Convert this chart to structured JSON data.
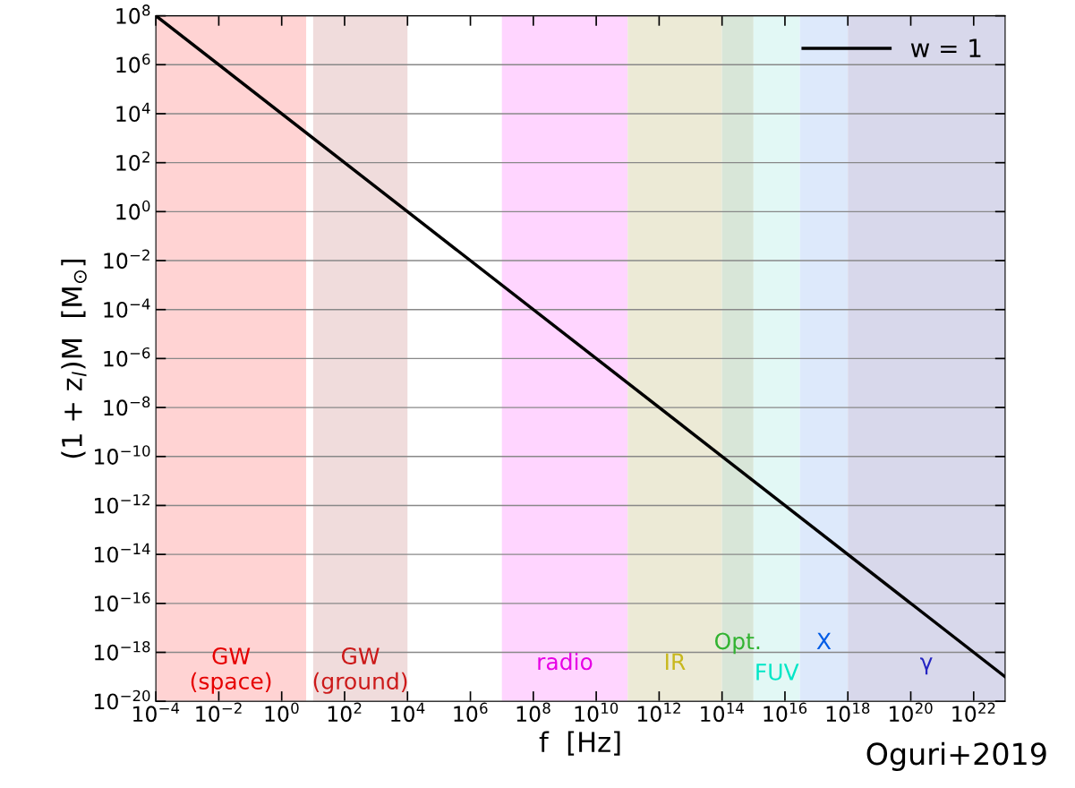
{
  "chart_data": {
    "type": "line",
    "xlabel": "f  [Hz]",
    "ylabel": "(1 + z$_{l}$)M  [M$_{⊙}$]",
    "series": [
      {
        "name": "w = 1",
        "color": "#000000",
        "x": [
          0.0001,
          1e+23
        ],
        "values": [
          100000000.0,
          1e-19
        ]
      }
    ],
    "log": "xy",
    "xlim": [
      0.0001,
      1e+23
    ],
    "ylim": [
      1e-20,
      100000000.0
    ],
    "xticks": [
      {
        "value": 0.0001,
        "label": "10$^{−4}$"
      },
      {
        "value": 0.01,
        "label": "10$^{−2}$"
      },
      {
        "value": 1,
        "label": "10$^{0}$"
      },
      {
        "value": 100.0,
        "label": "10$^{2}$"
      },
      {
        "value": 10000.0,
        "label": "10$^{4}$"
      },
      {
        "value": 1000000.0,
        "label": "10$^{6}$"
      },
      {
        "value": 100000000.0,
        "label": "10$^{8}$"
      },
      {
        "value": 10000000000.0,
        "label": "10$^{10}$"
      },
      {
        "value": 1000000000000.0,
        "label": "10$^{12}$"
      },
      {
        "value": 100000000000000.0,
        "label": "10$^{14}$"
      },
      {
        "value": 1e+16,
        "label": "10$^{16}$"
      },
      {
        "value": 1e+18,
        "label": "10$^{18}$"
      },
      {
        "value": 1e+20,
        "label": "10$^{20}$"
      },
      {
        "value": 1e+22,
        "label": "10$^{22}$"
      }
    ],
    "yticks": [
      {
        "value": 1e-20,
        "label": "10$^{−20}$"
      },
      {
        "value": 1e-18,
        "label": "10$^{−18}$"
      },
      {
        "value": 1e-16,
        "label": "10$^{−16}$"
      },
      {
        "value": 1e-14,
        "label": "10$^{−14}$"
      },
      {
        "value": 1e-12,
        "label": "10$^{−12}$"
      },
      {
        "value": 1e-10,
        "label": "10$^{−10}$"
      },
      {
        "value": 1e-08,
        "label": "10$^{−8}$"
      },
      {
        "value": 1e-06,
        "label": "10$^{−6}$"
      },
      {
        "value": 0.0001,
        "label": "10$^{−4}$"
      },
      {
        "value": 0.01,
        "label": "10$^{−2}$"
      },
      {
        "value": 1,
        "label": "10$^{0}$"
      },
      {
        "value": 100.0,
        "label": "10$^{2}$"
      },
      {
        "value": 10000.0,
        "label": "10$^{4}$"
      },
      {
        "value": 1000000.0,
        "label": "10$^{6}$"
      },
      {
        "value": 100000000.0,
        "label": "10$^{8}$"
      }
    ],
    "bands": [
      {
        "axis": "x",
        "from": 0.0001,
        "to": 6,
        "color": "#ffd3d3",
        "label": "GW\n(space)"
      },
      {
        "axis": "x",
        "from": 10,
        "to": 10000.0,
        "color": "#f0dcdc",
        "label": "GW\n(ground)"
      },
      {
        "axis": "x",
        "from": 10000000.0,
        "to": 100000000000.0,
        "color": "#ffd5ff",
        "label": "radio"
      },
      {
        "axis": "x",
        "from": 100000000000.0,
        "to": 100000000000000.0,
        "color": "#ecead6",
        "label": "IR"
      },
      {
        "axis": "x",
        "from": 100000000000000.0,
        "to": 1000000000000000.0,
        "color": "#d8e6d8",
        "label": "Opt."
      },
      {
        "axis": "x",
        "from": 1000000000000000.0,
        "to": 3e+16,
        "color": "#e2f8f5",
        "label": "FUV"
      },
      {
        "axis": "x",
        "from": 3e+16,
        "to": 1e+18,
        "color": "#dde9fb",
        "label": "X"
      },
      {
        "axis": "x",
        "from": 1e+18,
        "to": 1e+23,
        "color": "#d8d8eb",
        "label": "γ"
      }
    ],
    "annotations": [
      "Oguri+2019"
    ],
    "grid": "y",
    "legend": "top right"
  }
}
